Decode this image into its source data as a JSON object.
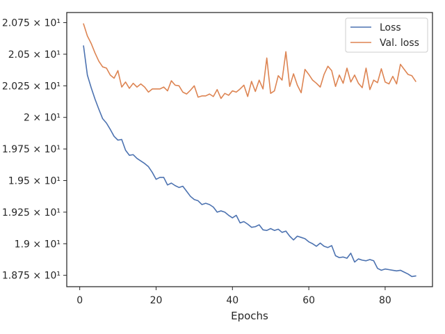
{
  "chart_data": {
    "type": "line",
    "title": "",
    "xlabel": "Epochs",
    "ylabel": "",
    "xlim": [
      -3.4,
      92.4
    ],
    "ylim": [
      18.66,
      20.83
    ],
    "grid": false,
    "legend_position": "top-right",
    "x_ticks": [
      {
        "value": 0,
        "label": "0"
      },
      {
        "value": 20,
        "label": "20"
      },
      {
        "value": 40,
        "label": "40"
      },
      {
        "value": 60,
        "label": "60"
      },
      {
        "value": 80,
        "label": "80"
      }
    ],
    "y_ticks": [
      {
        "value": 18.75,
        "label": "1.875 × 10¹"
      },
      {
        "value": 19.0,
        "label": "1.9 × 10¹"
      },
      {
        "value": 19.25,
        "label": "1.925 × 10¹"
      },
      {
        "value": 19.5,
        "label": "1.95 × 10¹"
      },
      {
        "value": 19.75,
        "label": "1.975 × 10¹"
      },
      {
        "value": 20.0,
        "label": "2 × 10¹"
      },
      {
        "value": 20.25,
        "label": "2.025 × 10¹"
      },
      {
        "value": 20.5,
        "label": "2.05 × 10¹"
      },
      {
        "value": 20.75,
        "label": "2.075 × 10¹"
      }
    ],
    "x": [
      1,
      2,
      3,
      4,
      5,
      6,
      7,
      8,
      9,
      10,
      11,
      12,
      13,
      14,
      15,
      16,
      17,
      18,
      19,
      20,
      21,
      22,
      23,
      24,
      25,
      26,
      27,
      28,
      29,
      30,
      31,
      32,
      33,
      34,
      35,
      36,
      37,
      38,
      39,
      40,
      41,
      42,
      43,
      44,
      45,
      46,
      47,
      48,
      49,
      50,
      51,
      52,
      53,
      54,
      55,
      56,
      57,
      58,
      59,
      60,
      61,
      62,
      63,
      64,
      65,
      66,
      67,
      68,
      69,
      70,
      71,
      72,
      73,
      74,
      75,
      76,
      77,
      78,
      79,
      80,
      81,
      82,
      83,
      84,
      85,
      86,
      87,
      88
    ],
    "series": [
      {
        "name": "Loss",
        "color": "#4c72b0",
        "values": [
          20.565,
          20.335,
          20.235,
          20.145,
          20.065,
          19.99,
          19.955,
          19.905,
          19.85,
          19.82,
          19.825,
          19.74,
          19.7,
          19.705,
          19.675,
          19.655,
          19.635,
          19.61,
          19.565,
          19.51,
          19.525,
          19.525,
          19.465,
          19.48,
          19.46,
          19.445,
          19.455,
          19.415,
          19.375,
          19.35,
          19.34,
          19.31,
          19.32,
          19.31,
          19.29,
          19.25,
          19.26,
          19.25,
          19.225,
          19.205,
          19.225,
          19.165,
          19.175,
          19.155,
          19.13,
          19.135,
          19.15,
          19.11,
          19.105,
          19.12,
          19.105,
          19.115,
          19.09,
          19.1,
          19.06,
          19.03,
          19.06,
          19.05,
          19.04,
          19.015,
          19.0,
          18.98,
          19.005,
          18.98,
          18.97,
          18.985,
          18.905,
          18.89,
          18.895,
          18.885,
          18.925,
          18.855,
          18.88,
          18.87,
          18.865,
          18.875,
          18.865,
          18.805,
          18.79,
          18.8,
          18.795,
          18.79,
          18.785,
          18.79,
          18.775,
          18.76,
          18.74,
          18.745
        ]
      },
      {
        "name": "Val. loss",
        "color": "#dd8452",
        "values": [
          20.74,
          20.645,
          20.585,
          20.51,
          20.445,
          20.4,
          20.39,
          20.335,
          20.31,
          20.37,
          20.24,
          20.28,
          20.23,
          20.27,
          20.24,
          20.265,
          20.24,
          20.2,
          20.225,
          20.225,
          20.225,
          20.24,
          20.21,
          20.29,
          20.255,
          20.25,
          20.2,
          20.185,
          20.215,
          20.25,
          20.16,
          20.17,
          20.17,
          20.185,
          20.165,
          20.22,
          20.15,
          20.19,
          20.175,
          20.21,
          20.2,
          20.225,
          20.255,
          20.165,
          20.285,
          20.205,
          20.295,
          20.225,
          20.47,
          20.19,
          20.21,
          20.33,
          20.295,
          20.52,
          20.245,
          20.345,
          20.255,
          20.195,
          20.38,
          20.34,
          20.295,
          20.27,
          20.24,
          20.34,
          20.405,
          20.37,
          20.245,
          20.335,
          20.27,
          20.39,
          20.28,
          20.335,
          20.27,
          20.235,
          20.39,
          20.22,
          20.295,
          20.275,
          20.385,
          20.28,
          20.265,
          20.325,
          20.265,
          20.42,
          20.38,
          20.34,
          20.33,
          20.285
        ]
      }
    ]
  }
}
